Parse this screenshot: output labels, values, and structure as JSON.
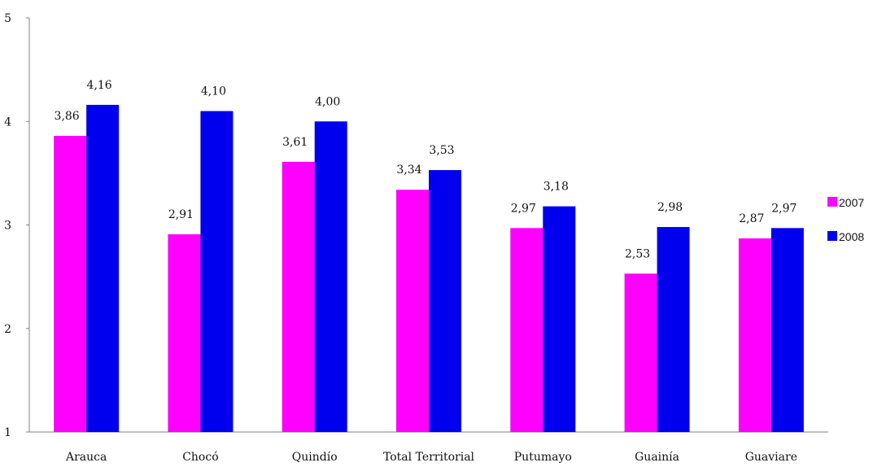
{
  "chart_data": {
    "type": "bar",
    "title": "",
    "xlabel": "",
    "ylabel": "",
    "ylim": [
      1,
      5
    ],
    "yticks": [
      "1",
      "2",
      "3",
      "4",
      "5"
    ],
    "grid": false,
    "legend_position": "right",
    "categories": [
      "Arauca",
      "Chocó",
      "Quindío",
      "Total Territorial",
      "Putumayo",
      "Guainía",
      "Guaviare"
    ],
    "series": [
      {
        "name": "2007",
        "color": "#ff00ff",
        "values": [
          3.86,
          2.91,
          3.61,
          3.34,
          2.97,
          2.53,
          2.87
        ],
        "labels": [
          "3,86",
          "2,91",
          "3,61",
          "3,34",
          "2,97",
          "2,53",
          "2,87"
        ]
      },
      {
        "name": "2008",
        "color": "#0000ee",
        "values": [
          4.16,
          4.1,
          4.0,
          3.53,
          3.18,
          2.98,
          2.97
        ],
        "labels": [
          "4,16",
          "4,10",
          "4,00",
          "3,53",
          "3,18",
          "2,98",
          "2,97"
        ]
      }
    ]
  }
}
